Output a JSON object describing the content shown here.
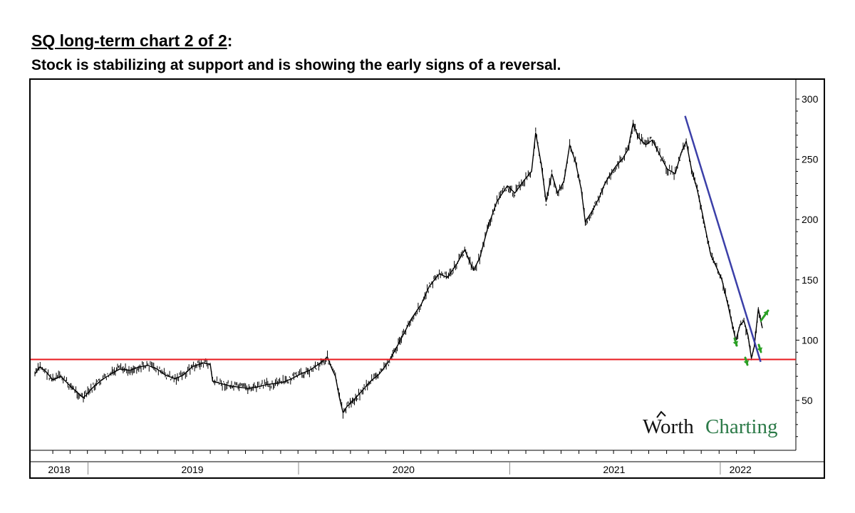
{
  "heading": {
    "title": "SQ long-term chart 2 of 2",
    "title_suffix": ":",
    "subtitle": "Stock is stabilizing at support and is showing the early signs of a reversal."
  },
  "watermark": {
    "word1": "Worth",
    "word2": "Charting",
    "arrow_icon": "arrow-up-icon"
  },
  "colors": {
    "price": "#000000",
    "support": "#e8191e",
    "trendline": "#3b3fa8",
    "arrows": "#2aa024",
    "brand_green": "#2c7a48"
  },
  "chart_data": {
    "type": "line",
    "title": "SQ long-term chart 2 of 2",
    "subtitle": "Stock is stabilizing at support and is showing the early signs of a reversal.",
    "xlabel": "",
    "ylabel": "",
    "y_ticks": [
      "300",
      "250",
      "200",
      "150",
      "100",
      "50"
    ],
    "ylim": [
      20,
      315
    ],
    "x_ticks": [
      "2018",
      "2019",
      "2020",
      "2021",
      "2022"
    ],
    "xlim": [
      "2018-10-01",
      "2022-03-15"
    ],
    "grid": false,
    "legend": "none",
    "series": [
      {
        "values": [
          [
            "2018-10-01",
            72
          ],
          [
            "2018-10-10",
            78
          ],
          [
            "2018-10-20",
            74
          ],
          [
            "2018-11-01",
            67
          ],
          [
            "2018-11-15",
            70
          ],
          [
            "2018-12-01",
            62
          ],
          [
            "2018-12-15",
            56
          ],
          [
            "2018-12-24",
            52
          ],
          [
            "2019-01-10",
            61
          ],
          [
            "2019-01-25",
            67
          ],
          [
            "2019-02-10",
            72
          ],
          [
            "2019-02-25",
            76
          ],
          [
            "2019-03-15",
            75
          ],
          [
            "2019-04-01",
            78
          ],
          [
            "2019-04-15",
            79
          ],
          [
            "2019-05-01",
            76
          ],
          [
            "2019-05-15",
            71
          ],
          [
            "2019-06-01",
            68
          ],
          [
            "2019-06-15",
            71
          ],
          [
            "2019-07-01",
            78
          ],
          [
            "2019-07-20",
            81
          ],
          [
            "2019-08-01",
            80
          ],
          [
            "2019-08-05",
            66
          ],
          [
            "2019-08-20",
            64
          ],
          [
            "2019-09-05",
            62
          ],
          [
            "2019-09-20",
            61
          ],
          [
            "2019-10-05",
            60
          ],
          [
            "2019-10-20",
            61
          ],
          [
            "2019-11-05",
            63
          ],
          [
            "2019-11-20",
            64
          ],
          [
            "2019-12-05",
            65
          ],
          [
            "2019-12-20",
            68
          ],
          [
            "2020-01-05",
            72
          ],
          [
            "2020-01-20",
            75
          ],
          [
            "2020-02-05",
            80
          ],
          [
            "2020-02-20",
            86
          ],
          [
            "2020-02-28",
            76
          ],
          [
            "2020-03-05",
            70
          ],
          [
            "2020-03-12",
            52
          ],
          [
            "2020-03-18",
            40
          ],
          [
            "2020-03-25",
            45
          ],
          [
            "2020-04-05",
            50
          ],
          [
            "2020-04-20",
            58
          ],
          [
            "2020-05-05",
            66
          ],
          [
            "2020-05-20",
            72
          ],
          [
            "2020-06-05",
            82
          ],
          [
            "2020-06-20",
            95
          ],
          [
            "2020-07-01",
            105
          ],
          [
            "2020-07-15",
            118
          ],
          [
            "2020-08-01",
            130
          ],
          [
            "2020-08-15",
            145
          ],
          [
            "2020-09-01",
            155
          ],
          [
            "2020-09-15",
            152
          ],
          [
            "2020-10-01",
            163
          ],
          [
            "2020-10-15",
            175
          ],
          [
            "2020-10-30",
            158
          ],
          [
            "2020-11-10",
            168
          ],
          [
            "2020-11-25",
            195
          ],
          [
            "2020-12-10",
            215
          ],
          [
            "2020-12-28",
            228
          ],
          [
            "2021-01-10",
            222
          ],
          [
            "2021-01-25",
            232
          ],
          [
            "2021-02-08",
            240
          ],
          [
            "2021-02-15",
            272
          ],
          [
            "2021-02-25",
            245
          ],
          [
            "2021-03-05",
            215
          ],
          [
            "2021-03-15",
            238
          ],
          [
            "2021-03-25",
            222
          ],
          [
            "2021-04-05",
            232
          ],
          [
            "2021-04-15",
            262
          ],
          [
            "2021-04-25",
            248
          ],
          [
            "2021-05-05",
            225
          ],
          [
            "2021-05-12",
            198
          ],
          [
            "2021-05-25",
            208
          ],
          [
            "2021-06-05",
            218
          ],
          [
            "2021-06-15",
            230
          ],
          [
            "2021-06-25",
            238
          ],
          [
            "2021-07-05",
            245
          ],
          [
            "2021-07-15",
            250
          ],
          [
            "2021-07-25",
            258
          ],
          [
            "2021-08-03",
            280
          ],
          [
            "2021-08-12",
            268
          ],
          [
            "2021-08-25",
            262
          ],
          [
            "2021-09-05",
            266
          ],
          [
            "2021-09-20",
            252
          ],
          [
            "2021-10-01",
            242
          ],
          [
            "2021-10-15",
            238
          ],
          [
            "2021-10-25",
            255
          ],
          [
            "2021-11-03",
            265
          ],
          [
            "2021-11-12",
            242
          ],
          [
            "2021-11-22",
            225
          ],
          [
            "2021-12-01",
            205
          ],
          [
            "2021-12-08",
            188
          ],
          [
            "2021-12-16",
            170
          ],
          [
            "2021-12-24",
            162
          ],
          [
            "2022-01-04",
            150
          ],
          [
            "2022-01-14",
            130
          ],
          [
            "2022-01-24",
            108
          ],
          [
            "2022-01-28",
            100
          ],
          [
            "2022-02-04",
            112
          ],
          [
            "2022-02-11",
            116
          ],
          [
            "2022-02-18",
            104
          ],
          [
            "2022-02-24",
            85
          ],
          [
            "2022-03-01",
            95
          ],
          [
            "2022-03-08",
            126
          ],
          [
            "2022-03-15",
            110
          ]
        ]
      }
    ],
    "support_line": 84,
    "trendline": {
      "from": [
        "2021-11-01",
        286
      ],
      "to": [
        "2022-03-12",
        82
      ]
    }
  }
}
